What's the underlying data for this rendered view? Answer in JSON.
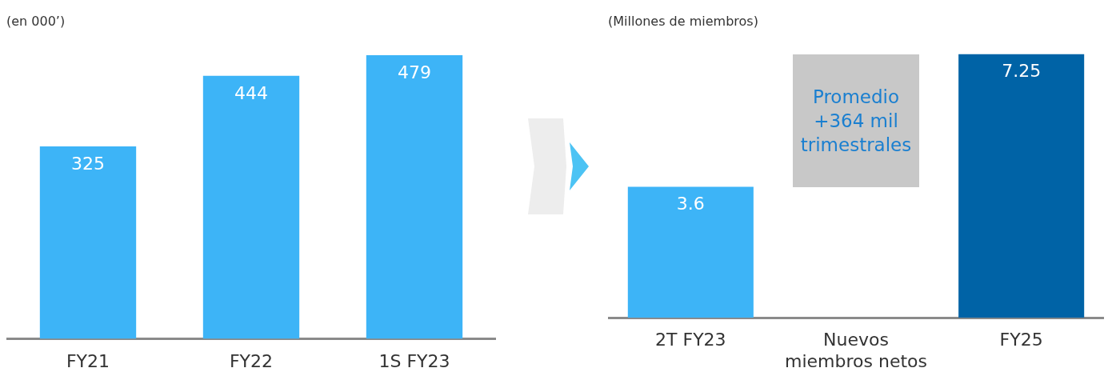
{
  "chart_data": [
    {
      "type": "bar",
      "subtitle": "(en 000’)",
      "categories": [
        "FY21",
        "FY22",
        "1S FY23"
      ],
      "values": [
        325,
        444,
        479
      ],
      "colors": [
        "#3db4f7",
        "#3db4f7",
        "#3db4f7"
      ],
      "data_labels": true,
      "grid": false,
      "legend": false,
      "tick_labels": "x"
    },
    {
      "type": "bar",
      "subtitle": "(Millones de miembros)",
      "categories": [
        "2T FY23",
        "Nuevos miembros netos",
        "FY25"
      ],
      "values": [
        3.6,
        null,
        7.25
      ],
      "colors": [
        "#3db4f7",
        "#c8c8c8",
        "#0063a6"
      ],
      "value_labels": [
        "3.6",
        null,
        "7.25"
      ],
      "annotations": [
        "Promedio +364 mil trimestrales"
      ],
      "grid": false,
      "legend": false,
      "tick_labels": "x"
    }
  ]
}
